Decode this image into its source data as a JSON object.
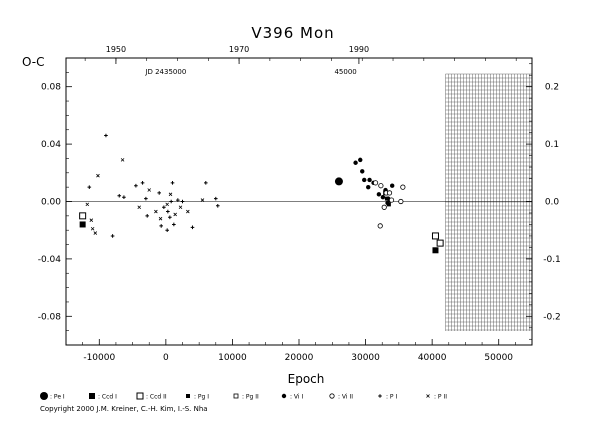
{
  "chart_data": {
    "type": "scatter",
    "title": "V396 Mon",
    "ylabel": "O-C",
    "xlabel": "Epoch",
    "xlim": [
      -15000,
      55000
    ],
    "ylim": [
      -0.1,
      0.1
    ],
    "x_ticks": [
      -10000,
      0,
      10000,
      20000,
      30000,
      40000,
      50000
    ],
    "x_tick_labels": [
      "-10000",
      "0",
      "10000",
      "20000",
      "30000",
      "40000",
      "50000"
    ],
    "y_ticks": [
      -0.08,
      -0.04,
      0.0,
      0.04,
      0.08
    ],
    "y_tick_labels": [
      "-0.08",
      "-0.04",
      "0.00",
      "0.04",
      "0.08"
    ],
    "right_ticks": [
      -0.2,
      -0.1,
      0.0,
      0.1,
      0.2
    ],
    "right_tick_labels": [
      "-0.2",
      "-0.1",
      "0.0",
      "0.1",
      "0.2"
    ],
    "top_ticks": [
      {
        "epoch": -7500,
        "label": "1950"
      },
      {
        "epoch": 11000,
        "label": "1970"
      },
      {
        "epoch": 29000,
        "label": "1990"
      }
    ],
    "jd_labels": [
      {
        "epoch": 0,
        "label": "JD 2435000"
      },
      {
        "epoch": 27000,
        "label": "45000"
      }
    ],
    "hatch_region": [
      42000,
      55000
    ],
    "grid": false,
    "legend_position": "bottom",
    "series": [
      {
        "name": "Pe I",
        "marker": "circle-filled-large",
        "points": [
          [
            26000,
            0.014
          ]
        ]
      },
      {
        "name": "Ccd I",
        "marker": "square-filled",
        "points": [
          [
            -12500,
            -0.016
          ],
          [
            40500,
            -0.034
          ]
        ]
      },
      {
        "name": "Ccd II",
        "marker": "square-open",
        "points": [
          [
            -12500,
            -0.01
          ],
          [
            40500,
            -0.024
          ],
          [
            41200,
            -0.029
          ]
        ]
      },
      {
        "name": "Pg I",
        "marker": "square-filled-small",
        "points": [
          [
            33200,
            0.002
          ],
          [
            33500,
            -0.002
          ]
        ]
      },
      {
        "name": "Pg II",
        "marker": "square-open-small",
        "points": [
          [
            33000,
            0.006
          ]
        ]
      },
      {
        "name": "Vi I",
        "marker": "dot",
        "points": [
          [
            28500,
            0.027
          ],
          [
            29200,
            0.029
          ],
          [
            29500,
            0.021
          ],
          [
            29800,
            0.015
          ],
          [
            30600,
            0.015
          ],
          [
            31200,
            0.013
          ],
          [
            30400,
            0.01
          ],
          [
            32000,
            0.005
          ],
          [
            32600,
            0.003
          ],
          [
            33000,
            0.008
          ],
          [
            33400,
            0.002
          ],
          [
            34000,
            0.011
          ],
          [
            33300,
            -0.001
          ],
          [
            33700,
            0.001
          ]
        ]
      },
      {
        "name": "Vi II",
        "marker": "circle-open",
        "points": [
          [
            31500,
            0.013
          ],
          [
            32300,
            0.011
          ],
          [
            32200,
            -0.017
          ],
          [
            33100,
            0.006
          ],
          [
            33600,
            0.006
          ],
          [
            32800,
            -0.004
          ],
          [
            35600,
            0.01
          ],
          [
            35300,
            0.0
          ],
          [
            33900,
            0.001
          ]
        ]
      },
      {
        "name": "P I",
        "marker": "plus",
        "points": [
          [
            -11500,
            0.01
          ],
          [
            -9000,
            0.046
          ],
          [
            -8000,
            -0.024
          ],
          [
            -7000,
            0.004
          ],
          [
            -6300,
            0.003
          ],
          [
            -4500,
            0.011
          ],
          [
            -3500,
            0.013
          ],
          [
            -3000,
            0.002
          ],
          [
            -2800,
            -0.01
          ],
          [
            -1000,
            0.006
          ],
          [
            -300,
            -0.004
          ],
          [
            300,
            -0.007
          ],
          [
            600,
            -0.011
          ],
          [
            800,
            0.0
          ],
          [
            -700,
            -0.017
          ],
          [
            200,
            -0.02
          ],
          [
            1200,
            -0.016
          ],
          [
            1800,
            0.001
          ],
          [
            1000,
            0.013
          ],
          [
            2500,
            0.0
          ],
          [
            4000,
            -0.018
          ],
          [
            6000,
            0.013
          ],
          [
            7500,
            0.002
          ],
          [
            7800,
            -0.003
          ]
        ]
      },
      {
        "name": "P II",
        "marker": "cross",
        "points": [
          [
            -11800,
            -0.002
          ],
          [
            -11000,
            -0.019
          ],
          [
            -10600,
            -0.022
          ],
          [
            -10200,
            0.018
          ],
          [
            -11200,
            -0.013
          ],
          [
            -6500,
            0.029
          ],
          [
            -4000,
            -0.004
          ],
          [
            -2500,
            0.008
          ],
          [
            -1500,
            -0.007
          ],
          [
            -800,
            -0.012
          ],
          [
            200,
            -0.002
          ],
          [
            700,
            0.005
          ],
          [
            1400,
            -0.009
          ],
          [
            2200,
            -0.004
          ],
          [
            3300,
            -0.007
          ],
          [
            5500,
            0.001
          ]
        ]
      }
    ]
  },
  "copyright": "Copyright 2000 J.M. Kreiner, C.-H. Kim, I.-S. Nha"
}
